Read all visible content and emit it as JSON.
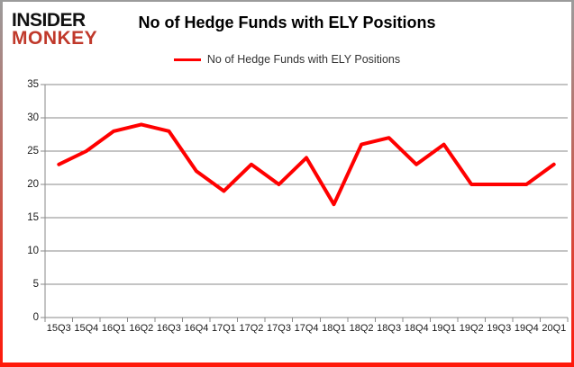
{
  "logo": {
    "line1": "INSIDER",
    "line2": "MONKEY"
  },
  "title": "No of Hedge Funds with ELY Positions",
  "legend": {
    "label": "No of Hedge Funds with ELY Positions"
  },
  "chart_data": {
    "type": "line",
    "title": "No of Hedge Funds with ELY Positions",
    "categories": [
      "15Q3",
      "15Q4",
      "16Q1",
      "16Q2",
      "16Q3",
      "16Q4",
      "17Q1",
      "17Q2",
      "17Q3",
      "17Q4",
      "18Q1",
      "18Q2",
      "18Q3",
      "18Q4",
      "19Q1",
      "19Q2",
      "19Q3",
      "19Q4",
      "20Q1"
    ],
    "values": [
      23,
      25,
      28,
      29,
      28,
      22,
      19,
      23,
      20,
      24,
      17,
      26,
      27,
      23,
      26,
      20,
      20,
      20,
      23
    ],
    "series": [
      {
        "name": "No of Hedge Funds with ELY Positions",
        "values": [
          23,
          25,
          28,
          29,
          28,
          22,
          19,
          23,
          20,
          24,
          17,
          26,
          27,
          23,
          26,
          20,
          20,
          20,
          23
        ]
      }
    ],
    "xlabel": "",
    "ylabel": "",
    "ylim": [
      0,
      35
    ],
    "yticks": [
      0,
      5,
      10,
      15,
      20,
      25,
      30,
      35
    ],
    "grid": true,
    "legend_position": "top-center"
  },
  "colors": {
    "series_line": "#ff0000",
    "logo_black": "#111111",
    "logo_red": "#c0392b",
    "grid_line": "#8a8a8a",
    "axis_text": "#1a1a1a",
    "border_top": "#9b9b9b",
    "border_bottom": "#ff190a"
  }
}
